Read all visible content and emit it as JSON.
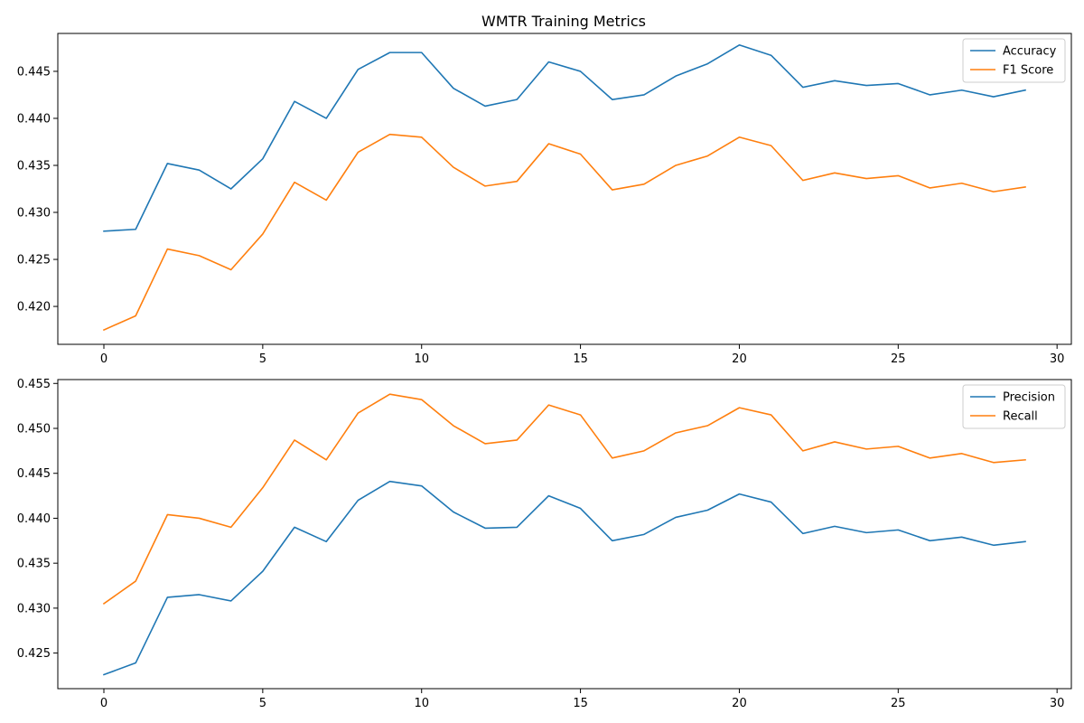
{
  "title": "WMTR Training Metrics",
  "colors": {
    "series1": "#1f77b4",
    "series2": "#ff7f0e"
  },
  "chart_data": [
    {
      "type": "line",
      "title": "WMTR Training Metrics",
      "xlabel": "",
      "ylabel": "",
      "x": [
        0,
        1,
        2,
        3,
        4,
        5,
        6,
        7,
        8,
        9,
        10,
        11,
        12,
        13,
        14,
        15,
        16,
        17,
        18,
        19,
        20,
        21,
        22,
        23,
        24,
        25,
        26,
        27,
        28,
        29
      ],
      "xlim": [
        -1.45,
        30.45
      ],
      "ylim": [
        0.41597,
        0.44903
      ],
      "xticks": [
        0,
        5,
        10,
        15,
        20,
        25,
        30
      ],
      "xtick_labels": [
        "0",
        "5",
        "10",
        "15",
        "20",
        "25",
        "30"
      ],
      "yticks": [
        0.42,
        0.425,
        0.43,
        0.435,
        0.44,
        0.445
      ],
      "ytick_labels": [
        "0.420",
        "0.425",
        "0.430",
        "0.435",
        "0.440",
        "0.445"
      ],
      "grid": false,
      "legend_position": "top-right",
      "series": [
        {
          "name": "Accuracy",
          "color": "#1f77b4",
          "values": [
            0.428,
            0.4282,
            0.4352,
            0.4345,
            0.4325,
            0.4357,
            0.4418,
            0.44,
            0.4452,
            0.447,
            0.447,
            0.4432,
            0.4413,
            0.442,
            0.446,
            0.445,
            0.442,
            0.4425,
            0.4445,
            0.4458,
            0.4478,
            0.4467,
            0.4433,
            0.444,
            0.4435,
            0.4437,
            0.4425,
            0.443,
            0.4423,
            0.443
          ]
        },
        {
          "name": "F1 Score",
          "color": "#ff7f0e",
          "values": [
            0.4175,
            0.419,
            0.4261,
            0.4254,
            0.4239,
            0.4277,
            0.4332,
            0.4313,
            0.4364,
            0.4383,
            0.438,
            0.4348,
            0.4328,
            0.4333,
            0.4373,
            0.4362,
            0.4324,
            0.433,
            0.435,
            0.436,
            0.438,
            0.4371,
            0.4334,
            0.4342,
            0.4336,
            0.4339,
            0.4326,
            0.4331,
            0.4322,
            0.4327
          ]
        }
      ]
    },
    {
      "type": "line",
      "title": "",
      "xlabel": "",
      "ylabel": "",
      "x": [
        0,
        1,
        2,
        3,
        4,
        5,
        6,
        7,
        8,
        9,
        10,
        11,
        12,
        13,
        14,
        15,
        16,
        17,
        18,
        19,
        20,
        21,
        22,
        23,
        24,
        25,
        26,
        27,
        28,
        29
      ],
      "xlim": [
        -1.45,
        30.45
      ],
      "ylim": [
        0.42104,
        0.45543
      ],
      "xticks": [
        0,
        5,
        10,
        15,
        20,
        25,
        30
      ],
      "xtick_labels": [
        "0",
        "5",
        "10",
        "15",
        "20",
        "25",
        "30"
      ],
      "yticks": [
        0.425,
        0.43,
        0.435,
        0.44,
        0.445,
        0.45,
        0.455
      ],
      "ytick_labels": [
        "0.425",
        "0.430",
        "0.435",
        "0.440",
        "0.445",
        "0.450",
        "0.455"
      ],
      "grid": false,
      "legend_position": "top-right",
      "series": [
        {
          "name": "Precision",
          "color": "#1f77b4",
          "values": [
            0.4226,
            0.4239,
            0.4312,
            0.4315,
            0.4308,
            0.4341,
            0.439,
            0.4374,
            0.442,
            0.4441,
            0.4436,
            0.4407,
            0.4389,
            0.439,
            0.4425,
            0.4411,
            0.4375,
            0.4382,
            0.4401,
            0.4409,
            0.4427,
            0.4418,
            0.4383,
            0.4391,
            0.4384,
            0.4387,
            0.4375,
            0.4379,
            0.437,
            0.4374
          ]
        },
        {
          "name": "Recall",
          "color": "#ff7f0e",
          "values": [
            0.4305,
            0.433,
            0.4404,
            0.44,
            0.439,
            0.4434,
            0.4487,
            0.4465,
            0.4517,
            0.4538,
            0.4532,
            0.4503,
            0.4483,
            0.4487,
            0.4526,
            0.4515,
            0.4467,
            0.4475,
            0.4495,
            0.4503,
            0.4523,
            0.4515,
            0.4475,
            0.4485,
            0.4477,
            0.448,
            0.4467,
            0.4472,
            0.4462,
            0.4465
          ]
        }
      ]
    }
  ]
}
